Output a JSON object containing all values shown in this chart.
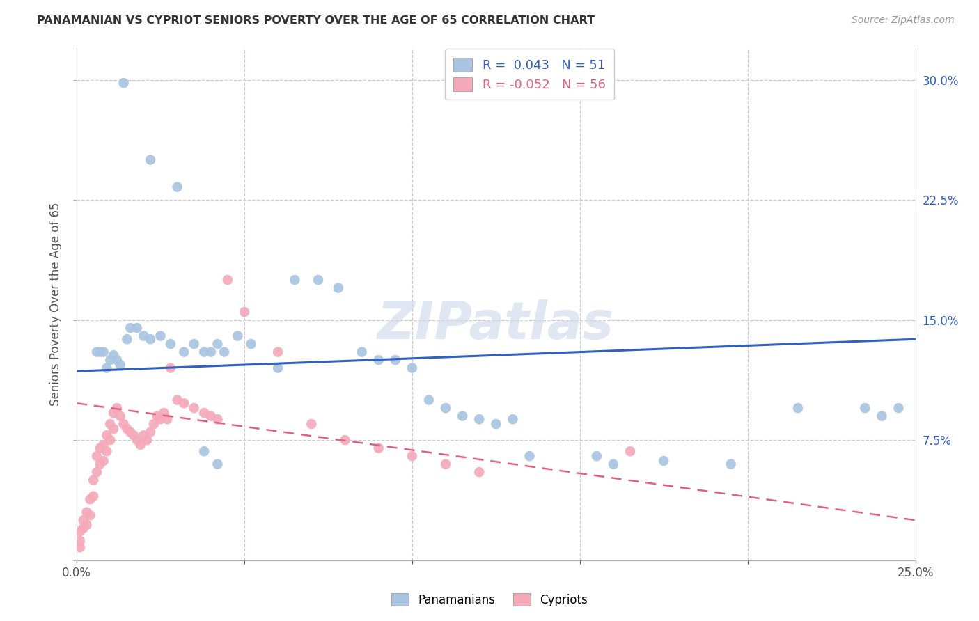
{
  "title": "PANAMANIAN VS CYPRIOT SENIORS POVERTY OVER THE AGE OF 65 CORRELATION CHART",
  "source": "Source: ZipAtlas.com",
  "ylabel": "Seniors Poverty Over the Age of 65",
  "xlim": [
    0.0,
    0.25
  ],
  "ylim": [
    0.0,
    0.32
  ],
  "legend_blue_R": "R =  0.043",
  "legend_blue_N": "N = 51",
  "legend_pink_R": "R = -0.052",
  "legend_pink_N": "N = 56",
  "blue_color": "#a8c4e0",
  "pink_color": "#f4a8b8",
  "blue_line_color": "#3060c0",
  "pink_line_color": "#e06080",
  "watermark": "ZIPatlas",
  "blue_points_x": [
    0.014,
    0.022,
    0.03,
    0.006,
    0.007,
    0.008,
    0.009,
    0.01,
    0.011,
    0.012,
    0.013,
    0.015,
    0.016,
    0.018,
    0.02,
    0.022,
    0.025,
    0.028,
    0.032,
    0.035,
    0.038,
    0.04,
    0.042,
    0.044,
    0.048,
    0.052,
    0.06,
    0.065,
    0.072,
    0.078,
    0.085,
    0.09,
    0.095,
    0.1,
    0.105,
    0.11,
    0.115,
    0.12,
    0.125,
    0.13,
    0.135,
    0.155,
    0.16,
    0.175,
    0.195,
    0.215,
    0.235,
    0.24,
    0.245,
    0.038,
    0.042
  ],
  "blue_points_y": [
    0.298,
    0.25,
    0.233,
    0.13,
    0.13,
    0.13,
    0.12,
    0.125,
    0.128,
    0.125,
    0.122,
    0.138,
    0.145,
    0.145,
    0.14,
    0.138,
    0.14,
    0.135,
    0.13,
    0.135,
    0.13,
    0.13,
    0.135,
    0.13,
    0.14,
    0.135,
    0.12,
    0.175,
    0.175,
    0.17,
    0.13,
    0.125,
    0.125,
    0.12,
    0.1,
    0.095,
    0.09,
    0.088,
    0.085,
    0.088,
    0.065,
    0.065,
    0.06,
    0.062,
    0.06,
    0.095,
    0.095,
    0.09,
    0.095,
    0.068,
    0.06
  ],
  "pink_points_x": [
    0.001,
    0.001,
    0.001,
    0.002,
    0.002,
    0.003,
    0.003,
    0.004,
    0.004,
    0.005,
    0.005,
    0.006,
    0.006,
    0.007,
    0.007,
    0.008,
    0.008,
    0.009,
    0.009,
    0.01,
    0.01,
    0.011,
    0.011,
    0.012,
    0.013,
    0.014,
    0.015,
    0.016,
    0.017,
    0.018,
    0.019,
    0.02,
    0.021,
    0.022,
    0.023,
    0.024,
    0.025,
    0.026,
    0.027,
    0.028,
    0.03,
    0.032,
    0.035,
    0.038,
    0.04,
    0.042,
    0.045,
    0.05,
    0.06,
    0.07,
    0.08,
    0.09,
    0.1,
    0.11,
    0.12,
    0.165
  ],
  "pink_points_y": [
    0.008,
    0.012,
    0.018,
    0.02,
    0.025,
    0.022,
    0.03,
    0.028,
    0.038,
    0.04,
    0.05,
    0.055,
    0.065,
    0.06,
    0.07,
    0.062,
    0.072,
    0.068,
    0.078,
    0.075,
    0.085,
    0.082,
    0.092,
    0.095,
    0.09,
    0.085,
    0.082,
    0.08,
    0.078,
    0.075,
    0.072,
    0.078,
    0.075,
    0.08,
    0.085,
    0.09,
    0.088,
    0.092,
    0.088,
    0.12,
    0.1,
    0.098,
    0.095,
    0.092,
    0.09,
    0.088,
    0.175,
    0.155,
    0.13,
    0.085,
    0.075,
    0.07,
    0.065,
    0.06,
    0.055,
    0.068
  ],
  "blue_line_x0": 0.0,
  "blue_line_y0": 0.118,
  "blue_line_x1": 0.25,
  "blue_line_y1": 0.138,
  "pink_line_x0": 0.0,
  "pink_line_y0": 0.098,
  "pink_line_x1": 0.25,
  "pink_line_y1": 0.025
}
